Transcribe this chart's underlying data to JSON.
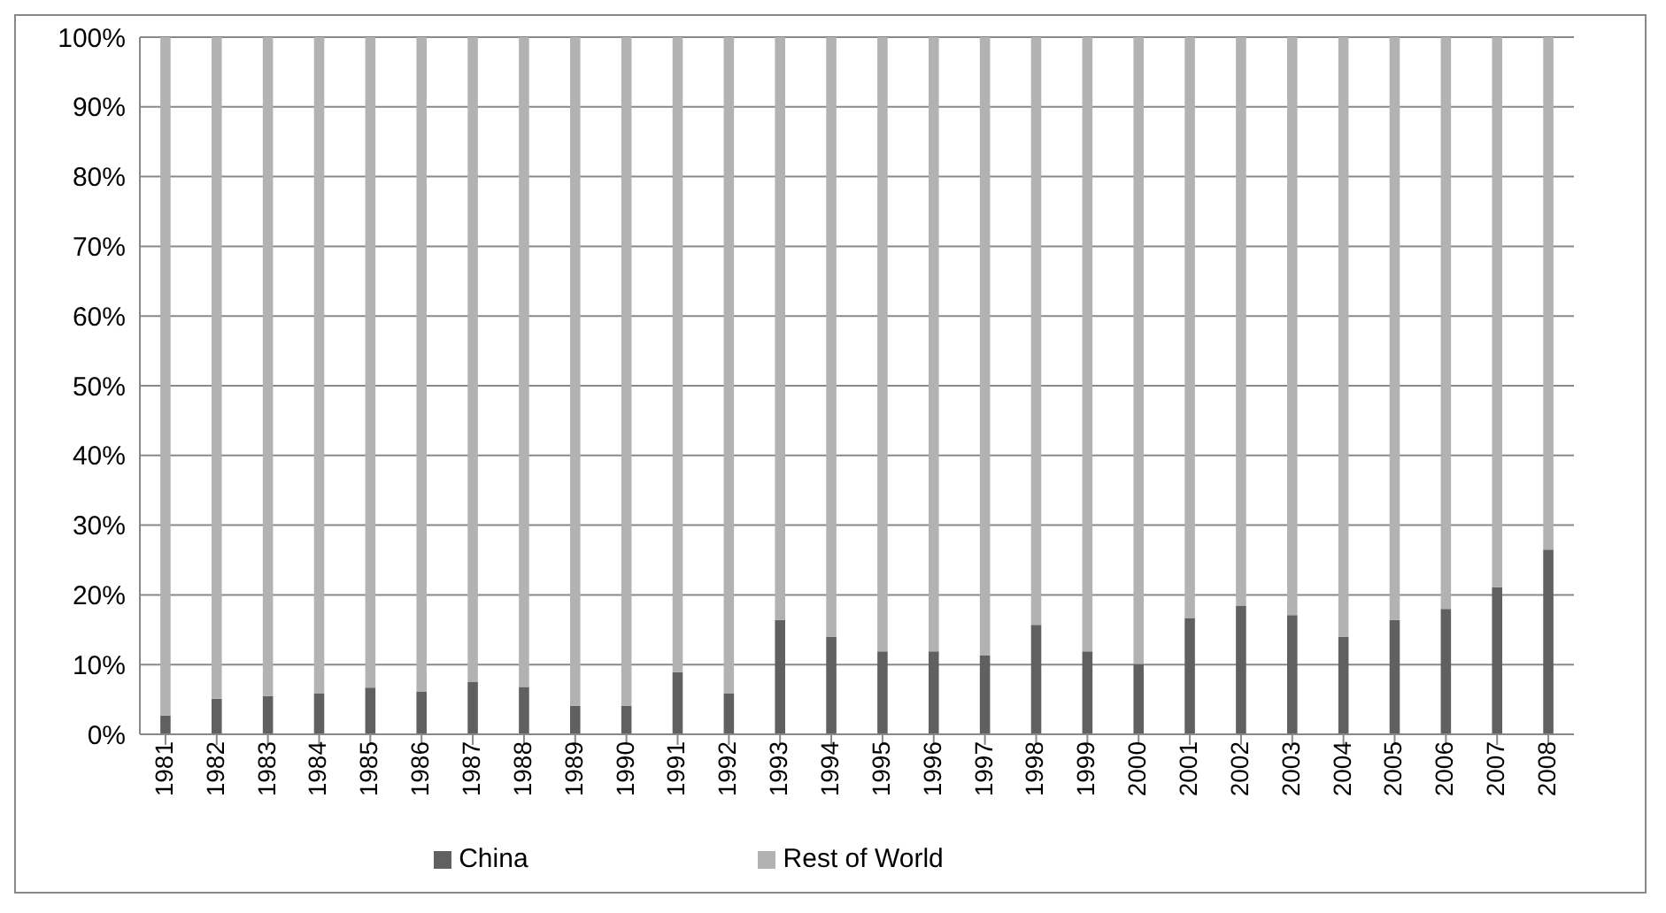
{
  "chart_data": {
    "type": "bar",
    "stacked": true,
    "categories": [
      "1981",
      "1982",
      "1983",
      "1984",
      "1985",
      "1986",
      "1987",
      "1988",
      "1989",
      "1990",
      "1991",
      "1992",
      "1993",
      "1994",
      "1995",
      "1996",
      "1997",
      "1998",
      "1999",
      "2000",
      "2001",
      "2002",
      "2003",
      "2004",
      "2005",
      "2006",
      "2007",
      "2008"
    ],
    "series": [
      {
        "name": "China",
        "color": "#606060",
        "values": [
          2.7,
          5.1,
          5.5,
          5.9,
          6.7,
          6.1,
          7.5,
          6.8,
          4.1,
          4.1,
          8.9,
          5.9,
          16.4,
          14.0,
          11.9,
          11.9,
          11.3,
          15.7,
          11.9,
          10.1,
          16.7,
          18.4,
          17.1,
          14.0,
          16.4,
          18.0,
          21.1,
          26.5
        ]
      },
      {
        "name": "Rest of World",
        "color": "#b2b2b2",
        "values": [
          97.3,
          94.9,
          94.5,
          94.1,
          93.3,
          93.9,
          92.5,
          93.2,
          95.9,
          95.9,
          91.1,
          94.1,
          83.6,
          86.0,
          88.1,
          88.1,
          88.7,
          84.3,
          88.1,
          89.9,
          83.3,
          81.6,
          82.9,
          86.0,
          83.6,
          82.0,
          78.9,
          73.5
        ]
      }
    ],
    "ylim": [
      0,
      100
    ],
    "yticks": [
      {
        "value": 0,
        "label": "0%"
      },
      {
        "value": 10,
        "label": "10%"
      },
      {
        "value": 20,
        "label": "20%"
      },
      {
        "value": 30,
        "label": "30%"
      },
      {
        "value": 40,
        "label": "40%"
      },
      {
        "value": 50,
        "label": "50%"
      },
      {
        "value": 60,
        "label": "60%"
      },
      {
        "value": 70,
        "label": "70%"
      },
      {
        "value": 80,
        "label": "80%"
      },
      {
        "value": 90,
        "label": "90%"
      },
      {
        "value": 100,
        "label": "100%"
      }
    ],
    "grid": "y",
    "legend": "bottom"
  }
}
